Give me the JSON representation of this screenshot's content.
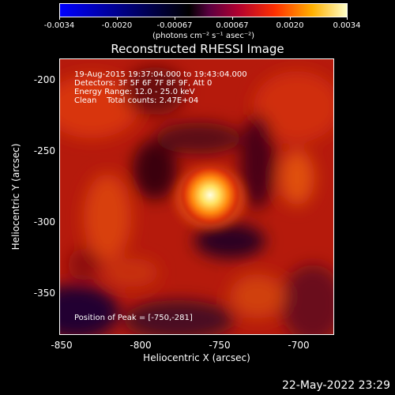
{
  "colorbar": {
    "tick_labels": [
      "-0.0034",
      "-0.0020",
      "-0.00067",
      "0.00067",
      "0.0020",
      "0.0034"
    ],
    "units": "(photons cm⁻² s⁻¹ asec⁻²)"
  },
  "title": "Reconstructed RHESSI Image",
  "info": {
    "time_range": "19-Aug-2015 19:37:04.000 to 19:43:04.000",
    "detectors": "Detectors: 3F 5F 6F 7F 8F 9F, Att 0",
    "energy": "Energy Range: 12.0 - 25.0 keV",
    "method": "Clean    Total counts: 2.47E+04",
    "peak": "Position of Peak = [-750,-281]"
  },
  "y_axis": {
    "label": "Heliocentric Y (arcsec)",
    "ticks": [
      "-200",
      "-250",
      "-300",
      "-350"
    ]
  },
  "x_axis": {
    "label": "Heliocentric X (arcsec)",
    "ticks": [
      "-850",
      "-800",
      "-750",
      "-700"
    ]
  },
  "footer_date": "22-May-2022 23:29"
}
